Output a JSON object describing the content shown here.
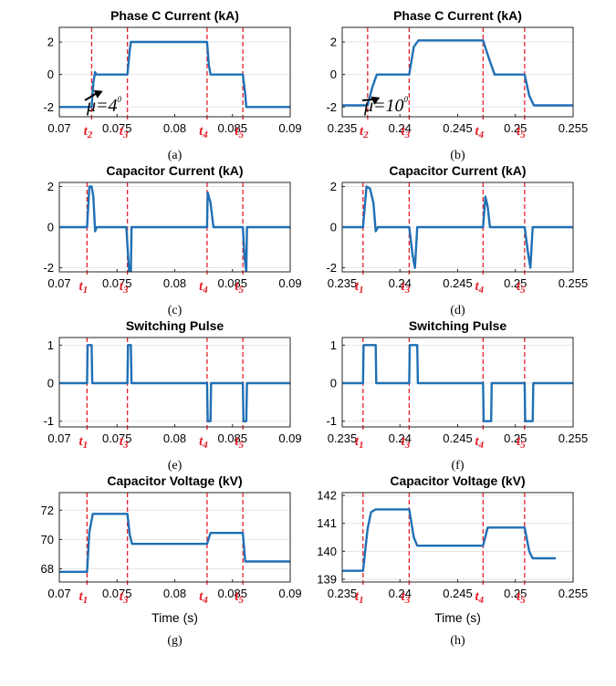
{
  "colors": {
    "trace": "#1f6fb5",
    "marker": "#e8202a",
    "grid": "#e6e6e6",
    "axis": "#262626"
  },
  "chart_data": [
    {
      "id": "a",
      "type": "line",
      "title": "Phase C Current (kA)",
      "caption": "(a)",
      "xlabel": "",
      "xlim": [
        0.07,
        0.09
      ],
      "ylim": [
        -2.6,
        2.9
      ],
      "xticks": [
        0.07,
        0.075,
        0.08,
        0.085,
        0.09
      ],
      "xtick_labels": [
        "0.07",
        "0.075",
        "0.08",
        "0.085",
        "0.09"
      ],
      "yticks": [
        -2,
        0,
        2
      ],
      "ytick_labels": [
        "-2",
        "0",
        "2"
      ],
      "grid": "horizontal",
      "series": [
        {
          "x": [
            0.07,
            0.0728,
            0.07295,
            0.0731,
            0.0732,
            0.0759,
            0.0761,
            0.0762,
            0.0828,
            0.08295,
            0.0831,
            0.0859,
            0.0861,
            0.0862,
            0.09
          ],
          "y": [
            -2,
            -2,
            -0.5,
            0.15,
            0,
            0,
            1.5,
            2,
            2,
            0.6,
            0,
            0,
            -1.2,
            -2,
            -2
          ]
        }
      ],
      "markers": [
        {
          "x": 0.0728,
          "label": "t",
          "sub": "2"
        },
        {
          "x": 0.0759,
          "label": "t",
          "sub": "3"
        },
        {
          "x": 0.0828,
          "label": "t",
          "sub": "4"
        },
        {
          "x": 0.0859,
          "label": "t",
          "sub": "5"
        }
      ],
      "annotation": {
        "text": "μ=4",
        "sup": "0",
        "arrow_to": [
          0.0729,
          -0.9
        ]
      }
    },
    {
      "id": "b",
      "type": "line",
      "title": "Phase C Current (kA)",
      "caption": "(b)",
      "xlabel": "",
      "xlim": [
        0.235,
        0.255
      ],
      "ylim": [
        -2.6,
        2.9
      ],
      "xticks": [
        0.235,
        0.24,
        0.245,
        0.25,
        0.255
      ],
      "xtick_labels": [
        "0.235",
        "0.24",
        "0.245",
        "0.25",
        "0.255"
      ],
      "yticks": [
        -2,
        0,
        2
      ],
      "ytick_labels": [
        "-2",
        "0",
        "2"
      ],
      "grid": "horizontal",
      "series": [
        {
          "x": [
            0.235,
            0.2372,
            0.2376,
            0.238,
            0.2408,
            0.2412,
            0.2416,
            0.2472,
            0.2477,
            0.2482,
            0.2508,
            0.2512,
            0.2516,
            0.255
          ],
          "y": [
            -1.9,
            -1.9,
            -0.8,
            0,
            0,
            1.7,
            2.1,
            2.1,
            1.0,
            0,
            0,
            -1.3,
            -1.9,
            -1.9
          ]
        }
      ],
      "markers": [
        {
          "x": 0.2372,
          "label": "t",
          "sub": "2"
        },
        {
          "x": 0.2408,
          "label": "t",
          "sub": "3"
        },
        {
          "x": 0.2472,
          "label": "t",
          "sub": "4"
        },
        {
          "x": 0.2508,
          "label": "t",
          "sub": "5"
        }
      ],
      "annotation": {
        "text": "μ=10",
        "sup": "0",
        "arrow_to": [
          0.2374,
          -1.3
        ]
      }
    },
    {
      "id": "c",
      "type": "line",
      "title": "Capacitor Current (kA)",
      "caption": "(c)",
      "xlabel": "",
      "xlim": [
        0.07,
        0.09
      ],
      "ylim": [
        -2.2,
        2.2
      ],
      "xticks": [
        0.07,
        0.075,
        0.08,
        0.085,
        0.09
      ],
      "xtick_labels": [
        "0.07",
        "0.075",
        "0.08",
        "0.085",
        "0.09"
      ],
      "yticks": [
        -2,
        0,
        2
      ],
      "ytick_labels": [
        "-2",
        "0",
        "2"
      ],
      "grid": "horizontal",
      "series": [
        {
          "x": [
            0.07,
            0.0724,
            0.0726,
            0.0728,
            0.07295,
            0.0731,
            0.07325,
            0.0758,
            0.07605,
            0.0762,
            0.07625,
            0.0828,
            0.08285,
            0.0831,
            0.08335,
            0.0859,
            0.08605,
            0.0862,
            0.08625,
            0.09
          ],
          "y": [
            0,
            0,
            2.0,
            2.0,
            1.5,
            -0.2,
            0,
            0,
            -2.2,
            -2.2,
            0,
            0,
            1.7,
            1.2,
            0,
            0,
            -1.5,
            -2.2,
            0,
            0
          ]
        }
      ],
      "markers": [
        {
          "x": 0.0724,
          "label": "t",
          "sub": "1"
        },
        {
          "x": 0.0759,
          "label": "t",
          "sub": "3"
        },
        {
          "x": 0.0828,
          "label": "t",
          "sub": "4"
        },
        {
          "x": 0.0859,
          "label": "t",
          "sub": "5"
        }
      ]
    },
    {
      "id": "d",
      "type": "line",
      "title": "Capacitor Current (kA)",
      "caption": "(d)",
      "xlabel": "",
      "xlim": [
        0.235,
        0.255
      ],
      "ylim": [
        -2.2,
        2.2
      ],
      "xticks": [
        0.235,
        0.24,
        0.245,
        0.25,
        0.255
      ],
      "xtick_labels": [
        "0.235",
        "0.24",
        "0.245",
        "0.25",
        "0.255"
      ],
      "yticks": [
        -2,
        0,
        2
      ],
      "ytick_labels": [
        "-2",
        "0",
        "2"
      ],
      "grid": "horizontal",
      "series": [
        {
          "x": [
            0.235,
            0.2368,
            0.2371,
            0.2374,
            0.2377,
            0.2379,
            0.2381,
            0.2408,
            0.2411,
            0.2413,
            0.2415,
            0.2472,
            0.2474,
            0.2476,
            0.2478,
            0.2508,
            0.2511,
            0.2513,
            0.2515,
            0.255
          ],
          "y": [
            0,
            0,
            2.0,
            1.9,
            1.2,
            -0.2,
            0,
            0,
            -1.4,
            -2.0,
            0,
            0,
            1.5,
            1.0,
            0,
            0,
            -1.3,
            -2.0,
            0,
            0
          ]
        }
      ],
      "markers": [
        {
          "x": 0.2368,
          "label": "t",
          "sub": "1"
        },
        {
          "x": 0.2408,
          "label": "t",
          "sub": "3"
        },
        {
          "x": 0.2472,
          "label": "t",
          "sub": "4"
        },
        {
          "x": 0.2508,
          "label": "t",
          "sub": "5"
        }
      ]
    },
    {
      "id": "e",
      "type": "line",
      "title": "Switching Pulse",
      "caption": "(e)",
      "xlabel": "",
      "xlim": [
        0.07,
        0.09
      ],
      "ylim": [
        -1.15,
        1.2
      ],
      "xticks": [
        0.07,
        0.075,
        0.08,
        0.085,
        0.09
      ],
      "xtick_labels": [
        "0.07",
        "0.075",
        "0.08",
        "0.085",
        "0.09"
      ],
      "yticks": [
        -1,
        0,
        1
      ],
      "ytick_labels": [
        "-1",
        "0",
        "1"
      ],
      "grid": "horizontal",
      "series": [
        {
          "x": [
            0.07,
            0.0724,
            0.07245,
            0.0728,
            0.07285,
            0.0759,
            0.07595,
            0.0762,
            0.07625,
            0.0828,
            0.08285,
            0.0831,
            0.08315,
            0.0859,
            0.08595,
            0.0862,
            0.08625,
            0.09
          ],
          "y": [
            0,
            0,
            1,
            1,
            0,
            0,
            1,
            1,
            0,
            0,
            -1,
            -1,
            0,
            0,
            -1,
            -1,
            0,
            0
          ]
        }
      ],
      "markers": [
        {
          "x": 0.0724,
          "label": "t",
          "sub": "1"
        },
        {
          "x": 0.0759,
          "label": "t",
          "sub": "3"
        },
        {
          "x": 0.0828,
          "label": "t",
          "sub": "4"
        },
        {
          "x": 0.0859,
          "label": "t",
          "sub": "5"
        }
      ]
    },
    {
      "id": "f",
      "type": "line",
      "title": "Switching Pulse",
      "caption": "(f)",
      "xlabel": "",
      "xlim": [
        0.235,
        0.255
      ],
      "ylim": [
        -1.15,
        1.2
      ],
      "xticks": [
        0.235,
        0.24,
        0.245,
        0.25,
        0.255
      ],
      "xtick_labels": [
        "0.235",
        "0.24",
        "0.245",
        "0.25",
        "0.255"
      ],
      "yticks": [
        -1,
        0,
        1
      ],
      "ytick_labels": [
        "-1",
        "0",
        "1"
      ],
      "grid": "horizontal",
      "series": [
        {
          "x": [
            0.235,
            0.2368,
            0.23685,
            0.2379,
            0.23795,
            0.2408,
            0.24085,
            0.2415,
            0.24155,
            0.2472,
            0.24725,
            0.2479,
            0.24795,
            0.2508,
            0.25085,
            0.2515,
            0.25155,
            0.255
          ],
          "y": [
            0,
            0,
            1,
            1,
            0,
            0,
            1,
            1,
            0,
            0,
            -1,
            -1,
            0,
            0,
            -1,
            -1,
            0,
            0
          ]
        }
      ],
      "markers": [
        {
          "x": 0.2368,
          "label": "t",
          "sub": "1"
        },
        {
          "x": 0.2408,
          "label": "t",
          "sub": "3"
        },
        {
          "x": 0.2472,
          "label": "t",
          "sub": "4"
        },
        {
          "x": 0.2508,
          "label": "t",
          "sub": "5"
        }
      ]
    },
    {
      "id": "g",
      "type": "line",
      "title": "Capacitor Voltage (kV)",
      "caption": "(g)",
      "xlabel": "Time (s)",
      "xlim": [
        0.07,
        0.09
      ],
      "ylim": [
        67.1,
        73.2
      ],
      "xticks": [
        0.07,
        0.075,
        0.08,
        0.085,
        0.09
      ],
      "xtick_labels": [
        "0.07",
        "0.075",
        "0.08",
        "0.085",
        "0.09"
      ],
      "yticks": [
        68,
        70,
        72
      ],
      "ytick_labels": [
        "68",
        "70",
        "72"
      ],
      "grid": "horizontal",
      "series": [
        {
          "x": [
            0.07,
            0.0724,
            0.0726,
            0.0729,
            0.0759,
            0.0761,
            0.0763,
            0.0828,
            0.0831,
            0.0859,
            0.0861,
            0.09
          ],
          "y": [
            67.8,
            67.8,
            70.5,
            71.75,
            71.75,
            70.3,
            69.7,
            69.7,
            70.45,
            70.45,
            68.5,
            68.5
          ]
        }
      ],
      "markers": [
        {
          "x": 0.0724,
          "label": "t",
          "sub": "1"
        },
        {
          "x": 0.0759,
          "label": "t",
          "sub": "3"
        },
        {
          "x": 0.0828,
          "label": "t",
          "sub": "4"
        },
        {
          "x": 0.0859,
          "label": "t",
          "sub": "5"
        }
      ]
    },
    {
      "id": "h",
      "type": "line",
      "title": "Capacitor Voltage (kV)",
      "caption": "(h)",
      "xlabel": "Time (s)",
      "xlim": [
        0.235,
        0.255
      ],
      "ylim": [
        138.9,
        142.1
      ],
      "xticks": [
        0.235,
        0.24,
        0.245,
        0.25,
        0.255
      ],
      "xtick_labels": [
        "0.235",
        "0.24",
        "0.245",
        "0.25",
        "0.255"
      ],
      "yticks": [
        139,
        140,
        141,
        142
      ],
      "ytick_labels": [
        "139",
        "140",
        "141",
        "142"
      ],
      "grid": "horizontal",
      "series": [
        {
          "x": [
            0.235,
            0.2368,
            0.2372,
            0.2375,
            0.2379,
            0.2408,
            0.2412,
            0.2415,
            0.2472,
            0.2476,
            0.2508,
            0.2512,
            0.2515,
            0.2535
          ],
          "y": [
            139.3,
            139.3,
            140.8,
            141.4,
            141.5,
            141.5,
            140.5,
            140.2,
            140.2,
            140.85,
            140.85,
            140.0,
            139.75,
            139.75
          ]
        }
      ],
      "markers": [
        {
          "x": 0.2368,
          "label": "t",
          "sub": "1"
        },
        {
          "x": 0.2408,
          "label": "t",
          "sub": "3"
        },
        {
          "x": 0.2472,
          "label": "t",
          "sub": "4"
        },
        {
          "x": 0.2508,
          "label": "t",
          "sub": "5"
        }
      ]
    }
  ]
}
